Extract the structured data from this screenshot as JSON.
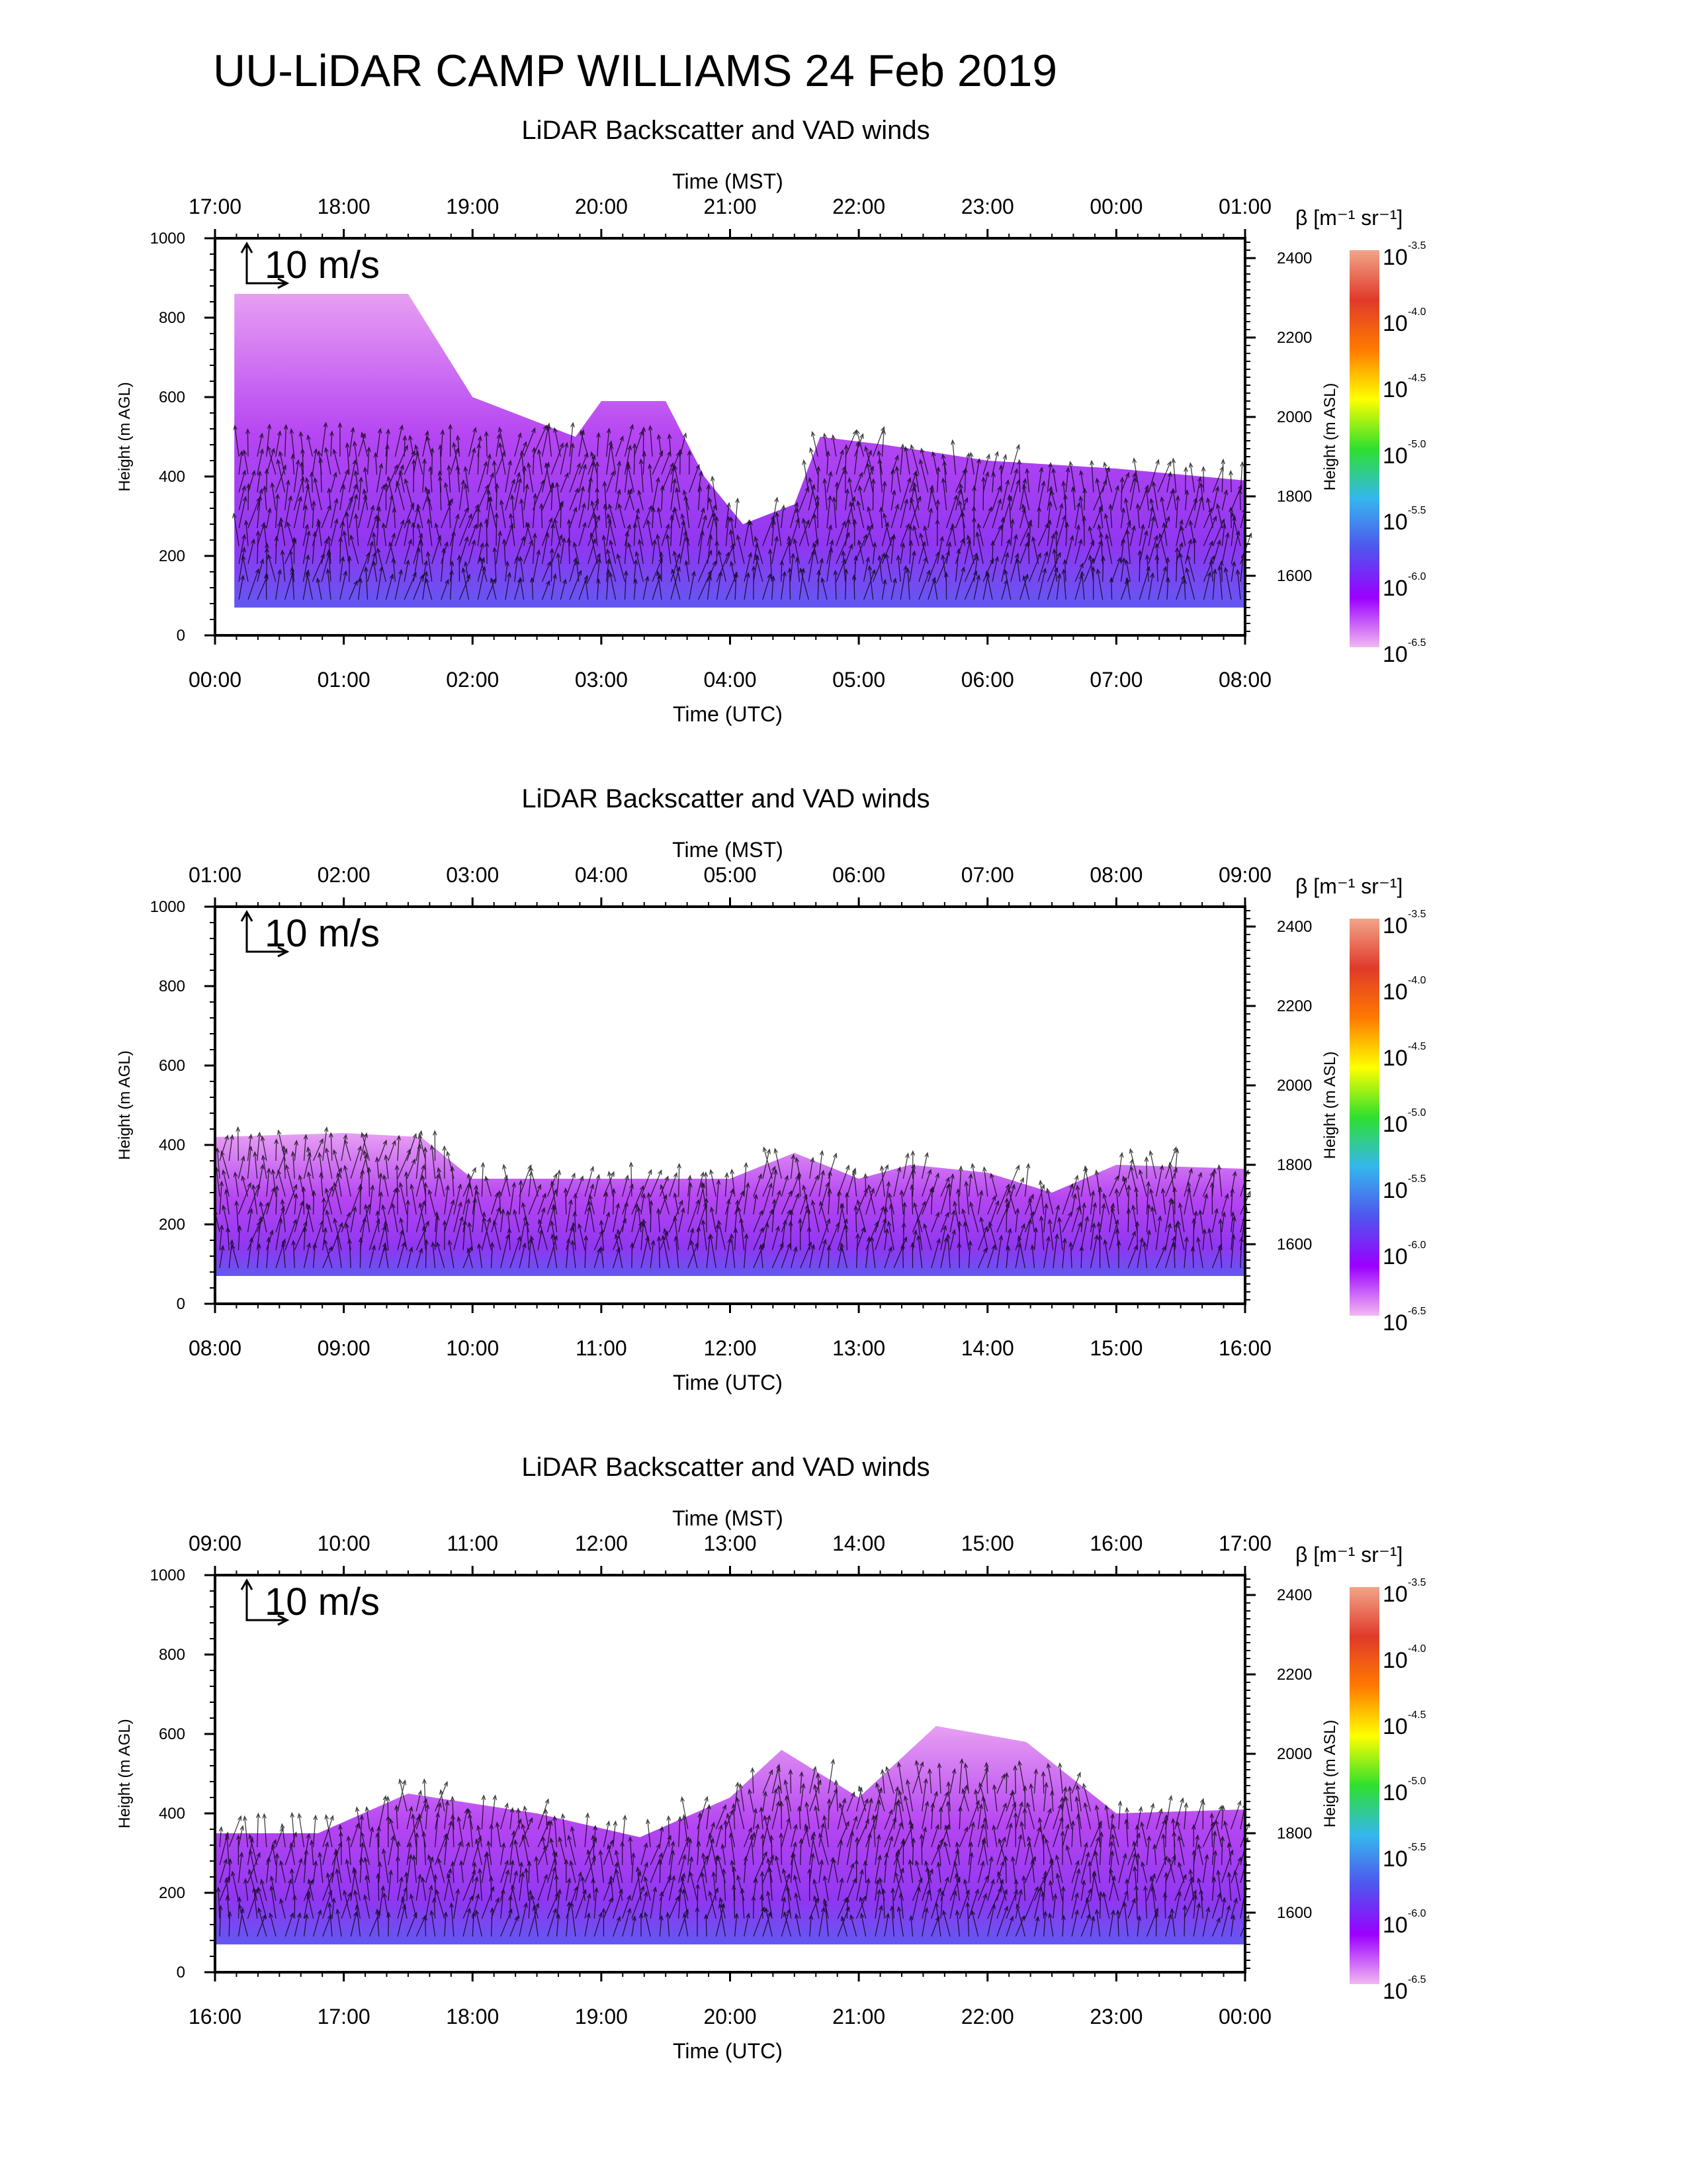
{
  "title": "UU-LiDAR CAMP WILLIAMS 24 Feb 2019",
  "colorbar": {
    "label": "β [m⁻¹ sr⁻¹]",
    "exponents": [
      "-3.5",
      "-4.0",
      "-4.5",
      "-5.0",
      "-5.5",
      "-6.0",
      "-6.5"
    ],
    "base": "10",
    "colors": [
      "#f2a58a",
      "#e03a2a",
      "#ff7a00",
      "#ffff00",
      "#2ee02e",
      "#35b7ee",
      "#4f55ee",
      "#9a00ff",
      "#f2b8f2"
    ]
  },
  "panels": [
    {
      "title": "LiDAR Backscatter and VAD winds",
      "top_axis_label": "Time (MST)",
      "bottom_axis_label": "Time (UTC)",
      "left_axis_label": "Height (m AGL)",
      "right_axis_label": "Height (m ASL)",
      "scale_label": "10 m/s",
      "top_ticks": [
        "17:00",
        "18:00",
        "19:00",
        "20:00",
        "21:00",
        "22:00",
        "23:00",
        "00:00",
        "01:00"
      ],
      "bottom_ticks": [
        "00:00",
        "01:00",
        "02:00",
        "03:00",
        "04:00",
        "05:00",
        "06:00",
        "07:00",
        "08:00"
      ],
      "left_ticks": [
        "0",
        "200",
        "400",
        "600",
        "800",
        "1000"
      ],
      "right_ticks": [
        "1600",
        "1800",
        "2000",
        "2200",
        "2400"
      ]
    },
    {
      "title": "LiDAR Backscatter and VAD winds",
      "top_axis_label": "Time (MST)",
      "bottom_axis_label": "Time (UTC)",
      "left_axis_label": "Height (m AGL)",
      "right_axis_label": "Height (m ASL)",
      "scale_label": "10 m/s",
      "top_ticks": [
        "01:00",
        "02:00",
        "03:00",
        "04:00",
        "05:00",
        "06:00",
        "07:00",
        "08:00",
        "09:00"
      ],
      "bottom_ticks": [
        "08:00",
        "09:00",
        "10:00",
        "11:00",
        "12:00",
        "13:00",
        "14:00",
        "15:00",
        "16:00"
      ],
      "left_ticks": [
        "0",
        "200",
        "400",
        "600",
        "800",
        "1000"
      ],
      "right_ticks": [
        "1600",
        "1800",
        "2000",
        "2200",
        "2400"
      ]
    },
    {
      "title": "LiDAR Backscatter and VAD winds",
      "top_axis_label": "Time (MST)",
      "bottom_axis_label": "Time (UTC)",
      "left_axis_label": "Height (m AGL)",
      "right_axis_label": "Height (m ASL)",
      "scale_label": "10 m/s",
      "top_ticks": [
        "09:00",
        "10:00",
        "11:00",
        "12:00",
        "13:00",
        "14:00",
        "15:00",
        "16:00",
        "17:00"
      ],
      "bottom_ticks": [
        "16:00",
        "17:00",
        "18:00",
        "19:00",
        "20:00",
        "21:00",
        "22:00",
        "23:00",
        "00:00"
      ],
      "left_ticks": [
        "0",
        "200",
        "400",
        "600",
        "800",
        "1000"
      ],
      "right_ticks": [
        "1600",
        "1800",
        "2000",
        "2200",
        "2400"
      ]
    }
  ],
  "chart_data": [
    {
      "type": "heatmap",
      "title": "LiDAR Backscatter and VAD winds",
      "xlabel": "Time (UTC)",
      "x2label": "Time (MST)",
      "ylabel": "Height (m AGL)",
      "y2label": "Height (m ASL)",
      "xlim": [
        0,
        8
      ],
      "ylim": [
        0,
        1000
      ],
      "y2lim": [
        1450,
        2450
      ],
      "x_ticks_hours_utc": [
        0,
        1,
        2,
        3,
        4,
        5,
        6,
        7,
        8
      ],
      "colorbar_log10_range": [
        -6.5,
        -3.5
      ],
      "aerosol_top_m": [
        [
          0.15,
          860
        ],
        [
          1.5,
          860
        ],
        [
          2,
          600
        ],
        [
          2.8,
          500
        ],
        [
          3,
          590
        ],
        [
          3.5,
          590
        ],
        [
          3.8,
          400
        ],
        [
          4.1,
          280
        ],
        [
          4.5,
          330
        ],
        [
          4.7,
          500
        ],
        [
          5.2,
          480
        ],
        [
          6,
          440
        ],
        [
          7,
          420
        ],
        [
          8,
          390
        ]
      ],
      "wind_arrows": "VAD wind vectors below the aerosol top; reference vector 10 m/s"
    },
    {
      "type": "heatmap",
      "title": "LiDAR Backscatter and VAD winds",
      "xlabel": "Time (UTC)",
      "x2label": "Time (MST)",
      "ylabel": "Height (m AGL)",
      "y2label": "Height (m ASL)",
      "xlim": [
        8,
        16
      ],
      "ylim": [
        0,
        1000
      ],
      "y2lim": [
        1450,
        2450
      ],
      "x_ticks_hours_utc": [
        8,
        9,
        10,
        11,
        12,
        13,
        14,
        15,
        16
      ],
      "colorbar_log10_range": [
        -6.5,
        -3.5
      ],
      "aerosol_top_m": [
        [
          8,
          420
        ],
        [
          9,
          430
        ],
        [
          9.6,
          420
        ],
        [
          10,
          315
        ],
        [
          12,
          315
        ],
        [
          12.5,
          380
        ],
        [
          13,
          315
        ],
        [
          13.4,
          350
        ],
        [
          14,
          330
        ],
        [
          14.5,
          280
        ],
        [
          15,
          350
        ],
        [
          16,
          340
        ]
      ],
      "wind_arrows": "VAD wind vectors below the aerosol top; reference vector 10 m/s"
    },
    {
      "type": "heatmap",
      "title": "LiDAR Backscatter and VAD winds",
      "xlabel": "Time (UTC)",
      "x2label": "Time (MST)",
      "ylabel": "Height (m AGL)",
      "y2label": "Height (m ASL)",
      "xlim": [
        16,
        24
      ],
      "ylim": [
        0,
        1000
      ],
      "y2lim": [
        1450,
        2450
      ],
      "x_ticks_hours_utc": [
        16,
        17,
        18,
        19,
        20,
        21,
        22,
        23,
        24
      ],
      "colorbar_log10_range": [
        -6.5,
        -3.5
      ],
      "aerosol_top_m": [
        [
          16,
          350
        ],
        [
          16.8,
          350
        ],
        [
          17.5,
          450
        ],
        [
          18.5,
          400
        ],
        [
          19.3,
          340
        ],
        [
          20,
          440
        ],
        [
          20.4,
          560
        ],
        [
          21,
          440
        ],
        [
          21.6,
          620
        ],
        [
          22.3,
          580
        ],
        [
          23,
          400
        ],
        [
          24,
          410
        ]
      ],
      "wind_arrows": "VAD wind vectors below the aerosol top; reference vector 10 m/s"
    }
  ]
}
